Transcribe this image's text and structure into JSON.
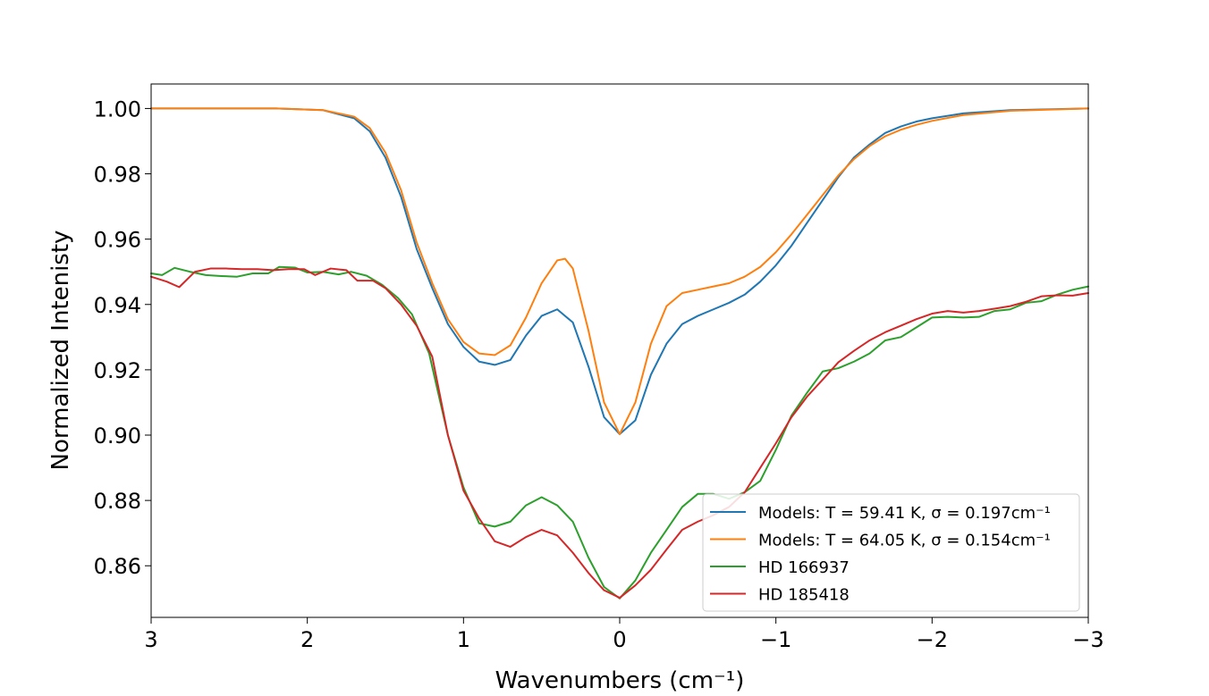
{
  "chart_data": {
    "type": "line",
    "xlabel": "Wavenumbers (cm⁻¹)",
    "ylabel": "Normalized Intenisty",
    "xlim": [
      3,
      -3
    ],
    "ylim": [
      0.8442,
      1.0075
    ],
    "x_inverted": true,
    "grid": false,
    "legend_position": "lower-right",
    "x_ticks": [
      3,
      2,
      1,
      0,
      -1,
      -2,
      -3
    ],
    "x_tick_labels": [
      "3",
      "2",
      "1",
      "0",
      "−1",
      "−2",
      "−3"
    ],
    "y_ticks": [
      1.0,
      0.98,
      0.96,
      0.94,
      0.92,
      0.9,
      0.88,
      0.86
    ],
    "y_tick_labels": [
      "1.00",
      "0.98",
      "0.96",
      "0.94",
      "0.92",
      "0.90",
      "0.88",
      "0.86"
    ],
    "series": [
      {
        "name": "Models: T = 59.41 K, σ = 0.197cm⁻¹",
        "color": "#1f77b4",
        "points": [
          [
            3.0,
            1.0
          ],
          [
            2.2,
            1.0
          ],
          [
            1.9,
            0.9995
          ],
          [
            1.7,
            0.997
          ],
          [
            1.6,
            0.993
          ],
          [
            1.5,
            0.985
          ],
          [
            1.4,
            0.973
          ],
          [
            1.3,
            0.957
          ],
          [
            1.2,
            0.945
          ],
          [
            1.1,
            0.934
          ],
          [
            1.0,
            0.927
          ],
          [
            0.9,
            0.9225
          ],
          [
            0.8,
            0.9215
          ],
          [
            0.7,
            0.923
          ],
          [
            0.6,
            0.9305
          ],
          [
            0.5,
            0.9365
          ],
          [
            0.4,
            0.9385
          ],
          [
            0.3,
            0.9345
          ],
          [
            0.2,
            0.921
          ],
          [
            0.1,
            0.9055
          ],
          [
            0.0,
            0.9003
          ],
          [
            -0.1,
            0.9045
          ],
          [
            -0.2,
            0.9185
          ],
          [
            -0.3,
            0.928
          ],
          [
            -0.4,
            0.934
          ],
          [
            -0.5,
            0.9365
          ],
          [
            -0.6,
            0.9385
          ],
          [
            -0.7,
            0.9405
          ],
          [
            -0.8,
            0.943
          ],
          [
            -0.9,
            0.947
          ],
          [
            -1.0,
            0.952
          ],
          [
            -1.1,
            0.958
          ],
          [
            -1.2,
            0.965
          ],
          [
            -1.3,
            0.972
          ],
          [
            -1.4,
            0.979
          ],
          [
            -1.5,
            0.985
          ],
          [
            -1.6,
            0.989
          ],
          [
            -1.7,
            0.9925
          ],
          [
            -1.8,
            0.9945
          ],
          [
            -1.9,
            0.996
          ],
          [
            -2.0,
            0.997
          ],
          [
            -2.2,
            0.9985
          ],
          [
            -2.5,
            0.9995
          ],
          [
            -3.0,
            1.0
          ]
        ]
      },
      {
        "name": "Models: T = 64.05 K, σ = 0.154cm⁻¹",
        "color": "#ff7f0e",
        "points": [
          [
            3.0,
            1.0
          ],
          [
            2.2,
            1.0
          ],
          [
            1.9,
            0.9995
          ],
          [
            1.7,
            0.9975
          ],
          [
            1.6,
            0.994
          ],
          [
            1.5,
            0.9865
          ],
          [
            1.4,
            0.975
          ],
          [
            1.3,
            0.959
          ],
          [
            1.2,
            0.9465
          ],
          [
            1.1,
            0.9355
          ],
          [
            1.0,
            0.9285
          ],
          [
            0.9,
            0.925
          ],
          [
            0.8,
            0.9245
          ],
          [
            0.7,
            0.9275
          ],
          [
            0.6,
            0.936
          ],
          [
            0.5,
            0.9465
          ],
          [
            0.4,
            0.9535
          ],
          [
            0.35,
            0.954
          ],
          [
            0.3,
            0.951
          ],
          [
            0.2,
            0.932
          ],
          [
            0.1,
            0.91
          ],
          [
            0.0,
            0.9003
          ],
          [
            -0.1,
            0.91
          ],
          [
            -0.2,
            0.928
          ],
          [
            -0.3,
            0.9395
          ],
          [
            -0.4,
            0.9435
          ],
          [
            -0.5,
            0.9445
          ],
          [
            -0.6,
            0.9455
          ],
          [
            -0.7,
            0.9465
          ],
          [
            -0.8,
            0.9485
          ],
          [
            -0.9,
            0.9515
          ],
          [
            -1.0,
            0.956
          ],
          [
            -1.1,
            0.9615
          ],
          [
            -1.2,
            0.9675
          ],
          [
            -1.3,
            0.9735
          ],
          [
            -1.4,
            0.9795
          ],
          [
            -1.5,
            0.9845
          ],
          [
            -1.6,
            0.9885
          ],
          [
            -1.7,
            0.9915
          ],
          [
            -1.8,
            0.9935
          ],
          [
            -1.9,
            0.995
          ],
          [
            -2.0,
            0.9962
          ],
          [
            -2.2,
            0.998
          ],
          [
            -2.5,
            0.9993
          ],
          [
            -3.0,
            1.0
          ]
        ]
      },
      {
        "name": "HD 166937",
        "color": "#2ca02c",
        "points": [
          [
            3.0,
            0.9495
          ],
          [
            2.93,
            0.949
          ],
          [
            2.85,
            0.9512
          ],
          [
            2.75,
            0.95
          ],
          [
            2.65,
            0.949
          ],
          [
            2.55,
            0.9487
          ],
          [
            2.45,
            0.9485
          ],
          [
            2.35,
            0.9495
          ],
          [
            2.25,
            0.9495
          ],
          [
            2.18,
            0.9515
          ],
          [
            2.08,
            0.9513
          ],
          [
            2.0,
            0.9498
          ],
          [
            1.9,
            0.95
          ],
          [
            1.8,
            0.9492
          ],
          [
            1.72,
            0.95
          ],
          [
            1.62,
            0.9488
          ],
          [
            1.52,
            0.946
          ],
          [
            1.42,
            0.942
          ],
          [
            1.33,
            0.937
          ],
          [
            1.22,
            0.925
          ],
          [
            1.1,
            0.9
          ],
          [
            1.0,
            0.884
          ],
          [
            0.9,
            0.873
          ],
          [
            0.8,
            0.872
          ],
          [
            0.7,
            0.8735
          ],
          [
            0.6,
            0.8785
          ],
          [
            0.5,
            0.881
          ],
          [
            0.4,
            0.8785
          ],
          [
            0.3,
            0.8735
          ],
          [
            0.2,
            0.8625
          ],
          [
            0.1,
            0.8535
          ],
          [
            0.0,
            0.85
          ],
          [
            -0.1,
            0.8555
          ],
          [
            -0.2,
            0.864
          ],
          [
            -0.3,
            0.871
          ],
          [
            -0.4,
            0.878
          ],
          [
            -0.5,
            0.882
          ],
          [
            -0.6,
            0.882
          ],
          [
            -0.7,
            0.8805
          ],
          [
            -0.8,
            0.8825
          ],
          [
            -0.9,
            0.886
          ],
          [
            -1.0,
            0.8955
          ],
          [
            -1.1,
            0.906
          ],
          [
            -1.2,
            0.913
          ],
          [
            -1.3,
            0.9195
          ],
          [
            -1.4,
            0.9205
          ],
          [
            -1.5,
            0.9225
          ],
          [
            -1.6,
            0.925
          ],
          [
            -1.7,
            0.929
          ],
          [
            -1.8,
            0.93
          ],
          [
            -1.9,
            0.933
          ],
          [
            -2.0,
            0.936
          ],
          [
            -2.1,
            0.9362
          ],
          [
            -2.2,
            0.936
          ],
          [
            -2.3,
            0.9362
          ],
          [
            -2.4,
            0.938
          ],
          [
            -2.5,
            0.9385
          ],
          [
            -2.6,
            0.9405
          ],
          [
            -2.7,
            0.941
          ],
          [
            -2.8,
            0.943
          ],
          [
            -2.9,
            0.9445
          ],
          [
            -3.0,
            0.9455
          ]
        ]
      },
      {
        "name": "HD 185418",
        "color": "#d62728",
        "points": [
          [
            3.0,
            0.9485
          ],
          [
            2.9,
            0.947
          ],
          [
            2.82,
            0.9453
          ],
          [
            2.72,
            0.95
          ],
          [
            2.62,
            0.951
          ],
          [
            2.52,
            0.951
          ],
          [
            2.42,
            0.9508
          ],
          [
            2.32,
            0.9508
          ],
          [
            2.22,
            0.9505
          ],
          [
            2.12,
            0.9508
          ],
          [
            2.02,
            0.9508
          ],
          [
            1.95,
            0.949
          ],
          [
            1.85,
            0.951
          ],
          [
            1.75,
            0.9505
          ],
          [
            1.68,
            0.9473
          ],
          [
            1.58,
            0.9473
          ],
          [
            1.5,
            0.945
          ],
          [
            1.4,
            0.94
          ],
          [
            1.3,
            0.9335
          ],
          [
            1.2,
            0.924
          ],
          [
            1.1,
            0.9
          ],
          [
            1.0,
            0.883
          ],
          [
            0.9,
            0.8745
          ],
          [
            0.8,
            0.8675
          ],
          [
            0.7,
            0.8658
          ],
          [
            0.6,
            0.8688
          ],
          [
            0.5,
            0.871
          ],
          [
            0.4,
            0.8693
          ],
          [
            0.3,
            0.864
          ],
          [
            0.2,
            0.8578
          ],
          [
            0.1,
            0.8525
          ],
          [
            0.0,
            0.8502
          ],
          [
            -0.1,
            0.854
          ],
          [
            -0.2,
            0.8588
          ],
          [
            -0.3,
            0.865
          ],
          [
            -0.4,
            0.871
          ],
          [
            -0.5,
            0.8735
          ],
          [
            -0.6,
            0.8755
          ],
          [
            -0.7,
            0.878
          ],
          [
            -0.8,
            0.8825
          ],
          [
            -0.9,
            0.89
          ],
          [
            -1.0,
            0.8975
          ],
          [
            -1.1,
            0.9055
          ],
          [
            -1.2,
            0.9118
          ],
          [
            -1.3,
            0.917
          ],
          [
            -1.4,
            0.9223
          ],
          [
            -1.5,
            0.9258
          ],
          [
            -1.6,
            0.929
          ],
          [
            -1.7,
            0.9315
          ],
          [
            -1.8,
            0.9335
          ],
          [
            -1.9,
            0.9355
          ],
          [
            -2.0,
            0.9372
          ],
          [
            -2.1,
            0.938
          ],
          [
            -2.2,
            0.9375
          ],
          [
            -2.3,
            0.938
          ],
          [
            -2.4,
            0.9387
          ],
          [
            -2.5,
            0.9395
          ],
          [
            -2.6,
            0.9408
          ],
          [
            -2.7,
            0.9425
          ],
          [
            -2.8,
            0.9428
          ],
          [
            -2.9,
            0.9427
          ],
          [
            -3.0,
            0.9435
          ]
        ]
      }
    ]
  }
}
